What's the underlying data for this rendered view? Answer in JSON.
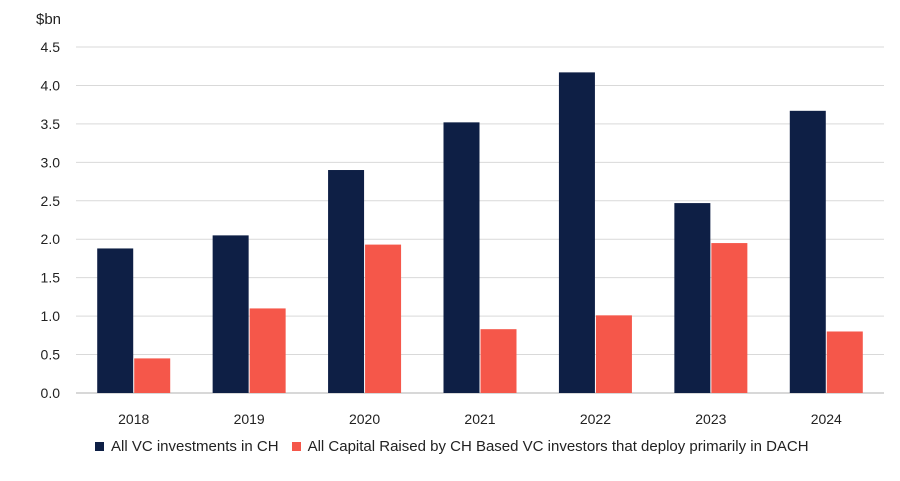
{
  "chart_data": {
    "type": "bar",
    "unit_label": "$bn",
    "categories": [
      "2018",
      "2019",
      "2020",
      "2021",
      "2022",
      "2023",
      "2024"
    ],
    "series": [
      {
        "name": "All VC investments in CH",
        "color": "#0e1f45",
        "values": [
          1.88,
          2.05,
          2.9,
          3.52,
          4.17,
          2.47,
          3.67
        ]
      },
      {
        "name": "All Capital Raised by CH Based VC investors that deploy primarily in DACH",
        "color": "#f5574a",
        "values": [
          0.45,
          1.1,
          1.93,
          0.83,
          1.01,
          1.95,
          0.8
        ]
      }
    ],
    "y_ticks": [
      "0.0",
      "0.5",
      "1.0",
      "1.5",
      "2.0",
      "2.5",
      "3.0",
      "3.5",
      "4.0",
      "4.5"
    ],
    "ylim": [
      0,
      4.5
    ],
    "grid": true,
    "legend_position": "bottom"
  }
}
